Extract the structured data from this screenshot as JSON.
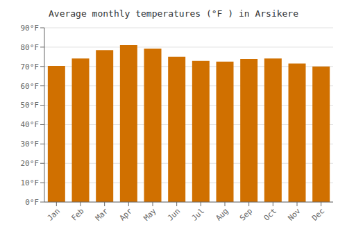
{
  "chart_data": {
    "type": "bar",
    "title": "Average monthly temperatures (°F ) in Arsikere",
    "categories": [
      "Jan",
      "Feb",
      "Mar",
      "Apr",
      "May",
      "Jun",
      "Jul",
      "Aug",
      "Sep",
      "Oct",
      "Nov",
      "Dec"
    ],
    "values": [
      70.3,
      74.1,
      78.4,
      81.0,
      79.2,
      75.0,
      72.9,
      72.5,
      73.9,
      74.1,
      71.5,
      70.0
    ],
    "color": "#D07000",
    "ylim": [
      0,
      90
    ],
    "yticks": [
      {
        "value": 0,
        "label": "0°F"
      },
      {
        "value": 10,
        "label": "10°F"
      },
      {
        "value": 20,
        "label": "20°F"
      },
      {
        "value": 30,
        "label": "30°F"
      },
      {
        "value": 40,
        "label": "40°F"
      },
      {
        "value": 50,
        "label": "50°F"
      },
      {
        "value": 60,
        "label": "60°F"
      },
      {
        "value": 70,
        "label": "70°F"
      },
      {
        "value": 80,
        "label": "80°F"
      },
      {
        "value": 90,
        "label": "90°F"
      }
    ],
    "grid": true
  }
}
